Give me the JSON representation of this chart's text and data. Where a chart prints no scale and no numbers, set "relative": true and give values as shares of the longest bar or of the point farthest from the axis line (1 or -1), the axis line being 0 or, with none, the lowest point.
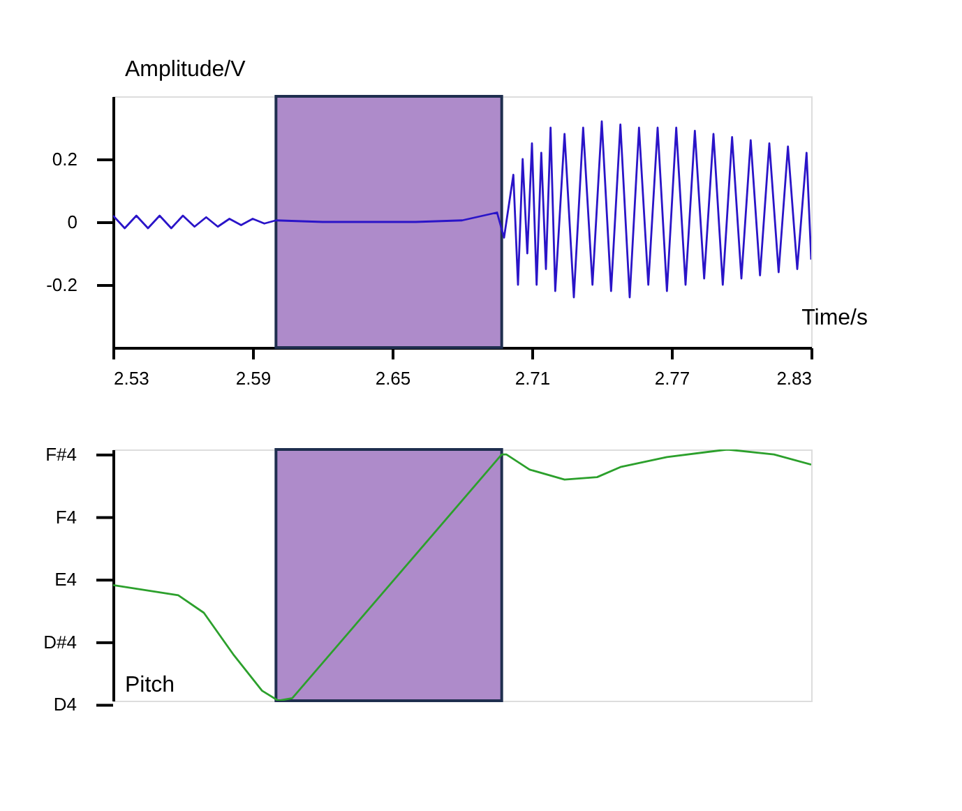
{
  "chart_data": [
    {
      "type": "line",
      "xlabel": "Time/s",
      "ylabel": "Amplitude/V",
      "xlim": [
        2.53,
        2.83
      ],
      "xticks": [
        2.53,
        2.59,
        2.65,
        2.71,
        2.77,
        2.83
      ],
      "ylim": [
        -0.4,
        0.4
      ],
      "yticks": [
        -0.2,
        0,
        0.2
      ],
      "grid": false,
      "series": [
        {
          "color": "#2a14c8",
          "x": [
            2.53,
            2.535,
            2.54,
            2.545,
            2.55,
            2.555,
            2.56,
            2.565,
            2.57,
            2.575,
            2.58,
            2.585,
            2.59,
            2.595,
            2.6,
            2.62,
            2.64,
            2.66,
            2.68,
            2.695,
            2.698,
            2.702,
            2.704,
            2.706,
            2.708,
            2.71,
            2.712,
            2.714,
            2.716,
            2.718,
            2.72,
            2.724,
            2.728,
            2.732,
            2.736,
            2.74,
            2.744,
            2.748,
            2.752,
            2.756,
            2.76,
            2.764,
            2.768,
            2.772,
            2.776,
            2.78,
            2.784,
            2.788,
            2.792,
            2.796,
            2.8,
            2.804,
            2.808,
            2.812,
            2.816,
            2.82,
            2.824,
            2.828,
            2.83
          ],
          "values": [
            0.02,
            -0.02,
            0.02,
            -0.02,
            0.02,
            -0.02,
            0.02,
            -0.015,
            0.015,
            -0.015,
            0.01,
            -0.01,
            0.01,
            -0.005,
            0.005,
            0,
            0,
            0,
            0.005,
            0.03,
            -0.05,
            0.15,
            -0.2,
            0.2,
            -0.1,
            0.25,
            -0.2,
            0.22,
            -0.15,
            0.3,
            -0.22,
            0.28,
            -0.24,
            0.3,
            -0.2,
            0.32,
            -0.22,
            0.31,
            -0.24,
            0.3,
            -0.2,
            0.3,
            -0.22,
            0.3,
            -0.2,
            0.29,
            -0.18,
            0.28,
            -0.2,
            0.27,
            -0.18,
            0.26,
            -0.17,
            0.25,
            -0.16,
            0.24,
            -0.15,
            0.22,
            -0.12
          ]
        }
      ],
      "bands": [
        {
          "axis": "x",
          "from": 2.6,
          "to": 2.697,
          "color": "#ae8bca"
        }
      ]
    },
    {
      "type": "line",
      "ylabel": "Pitch",
      "xlim": [
        2.53,
        2.83
      ],
      "relative": true,
      "grid": false,
      "tick_labels": "y",
      "annotations": [
        "F#4",
        "F4",
        "E4",
        "D#4",
        "D4"
      ],
      "series": [
        {
          "color": "#2ca02c",
          "x": [
            2.53,
            2.558,
            2.569,
            2.582,
            2.594,
            2.601,
            2.607,
            2.697,
            2.699,
            2.709,
            2.724,
            2.738,
            2.748,
            2.768,
            2.794,
            2.814,
            2.83
          ],
          "values": [
            0.46,
            0.42,
            0.35,
            0.18,
            0.04,
            0,
            0.01,
            0.98,
            0.98,
            0.92,
            0.88,
            0.89,
            0.93,
            0.97,
            1,
            0.98,
            0.94
          ]
        }
      ],
      "bands": [
        {
          "axis": "x",
          "from": 2.6,
          "to": 2.697,
          "color": "#ae8bca"
        }
      ]
    }
  ]
}
